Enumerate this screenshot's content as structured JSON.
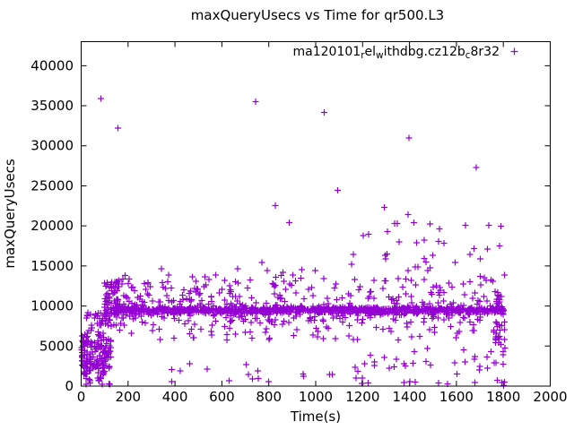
{
  "chart_data": {
    "type": "scatter",
    "title": "maxQueryUsecs vs Time for qr500.L3",
    "xlabel": "Time(s)",
    "ylabel": "maxQueryUsecs",
    "xlim": [
      0,
      2000
    ],
    "ylim": [
      0,
      43000
    ],
    "xticks": [
      0,
      200,
      400,
      600,
      800,
      1000,
      1200,
      1400,
      1600,
      1800,
      2000
    ],
    "yticks": [
      0,
      5000,
      10000,
      15000,
      20000,
      25000,
      30000,
      35000,
      40000
    ],
    "grid": false,
    "legend": {
      "position": "top-right-inside",
      "label_plain": "ma120101_rel_withdbg.cz12b_c8r32",
      "segments": [
        {
          "t": "ma120101",
          "sub": false
        },
        {
          "t": "r",
          "sub": true
        },
        {
          "t": "el",
          "sub": false
        },
        {
          "t": "w",
          "sub": true
        },
        {
          "t": "ithdbg.cz12b",
          "sub": false
        },
        {
          "t": "c",
          "sub": true
        },
        {
          "t": "8r32",
          "sub": false
        }
      ]
    },
    "marker": {
      "shape": "plus",
      "color": "#9400D3",
      "size": 7
    },
    "points": {
      "seed": 7,
      "note": "Dense ~1800-point scatter estimated from plot: clusters give density regions (values in data units), outliers are individually read points.",
      "outliers": [
        [
          84,
          35900
        ],
        [
          156,
          32230
        ],
        [
          743,
          35500
        ],
        [
          1036,
          34150
        ],
        [
          1398,
          31000
        ],
        [
          1684,
          27270
        ],
        [
          1093,
          24450
        ],
        [
          827,
          22530
        ],
        [
          1293,
          22300
        ],
        [
          888,
          20400
        ],
        [
          1226,
          18930
        ],
        [
          1348,
          20280
        ],
        [
          1394,
          21400
        ],
        [
          1355,
          18030
        ],
        [
          1638,
          20060
        ],
        [
          1299,
          15890
        ],
        [
          1546,
          17810
        ],
        [
          1733,
          17130
        ],
        [
          1657,
          16460
        ],
        [
          1702,
          15890
        ],
        [
          1435,
          14870
        ],
        [
          1488,
          14760
        ],
        [
          343,
          14640
        ],
        [
          667,
          14640
        ],
        [
          771,
          15420
        ],
        [
          794,
          14400
        ],
        [
          903,
          13850
        ],
        [
          941,
          14520
        ],
        [
          998,
          14400
        ],
        [
          545,
          13300
        ],
        [
          830,
          13600
        ],
        [
          860,
          14200
        ],
        [
          423,
          1900
        ],
        [
          537,
          2100
        ],
        [
          731,
          900
        ],
        [
          800,
          560
        ],
        [
          949,
          1230
        ],
        [
          1059,
          1450
        ],
        [
          1173,
          1000
        ],
        [
          1250,
          2550
        ],
        [
          1524,
          400
        ],
        [
          1562,
          260
        ],
        [
          1676,
          3370
        ],
        [
          1699,
          2480
        ],
        [
          1733,
          2250
        ],
        [
          1775,
          700
        ],
        [
          1794,
          450
        ],
        [
          1802,
          30
        ]
      ],
      "clusters": [
        {
          "name": "startup-blob-core",
          "n": 150,
          "dist": "normal",
          "x": [
            3,
            130
          ],
          "mean": 3600,
          "sd": 1700,
          "clip": [
            250,
            7600
          ]
        },
        {
          "name": "startup-left-edge",
          "n": 35,
          "dist": "uniform",
          "x": [
            2,
            28
          ],
          "y": [
            1400,
            6800
          ]
        },
        {
          "name": "startup-top",
          "n": 30,
          "dist": "uniform",
          "x": [
            15,
            150
          ],
          "y": [
            7300,
            9200
          ]
        },
        {
          "name": "startup-column",
          "n": 58,
          "dist": "uniform",
          "x": [
            95,
            165
          ],
          "y": [
            8800,
            13200
          ]
        },
        {
          "name": "main-band",
          "n": 880,
          "dist": "normal",
          "x": [
            135,
            1808
          ],
          "mean": 9480,
          "sd": 215
        },
        {
          "name": "band-halo",
          "n": 230,
          "dist": "normal",
          "x": [
            135,
            1808
          ],
          "mean": 9480,
          "sd": 850
        },
        {
          "name": "above-band-scatter",
          "n": 120,
          "dist": "uniform",
          "x": [
            145,
            1808
          ],
          "y": [
            10600,
            13900
          ]
        },
        {
          "name": "early-above-band",
          "n": 28,
          "dist": "uniform",
          "x": [
            140,
            700
          ],
          "y": [
            10300,
            12700
          ]
        },
        {
          "name": "below-band-scatter",
          "n": 95,
          "dist": "uniform",
          "x": [
            145,
            1808
          ],
          "y": [
            5700,
            8600
          ]
        },
        {
          "name": "right-high-scatter",
          "n": 24,
          "dist": "uniform",
          "x": [
            1150,
            1790
          ],
          "y": [
            14400,
            21500
          ]
        },
        {
          "name": "low-left",
          "n": 10,
          "dist": "uniform",
          "x": [
            380,
            1150
          ],
          "y": [
            400,
            3000
          ]
        },
        {
          "name": "low-right",
          "n": 26,
          "dist": "uniform",
          "x": [
            1150,
            1806
          ],
          "y": [
            250,
            3200
          ]
        },
        {
          "name": "low-mid",
          "n": 10,
          "dist": "uniform",
          "x": [
            1000,
            1800
          ],
          "y": [
            3200,
            5400
          ]
        },
        {
          "name": "end-of-run-tail",
          "n": 34,
          "dist": "uniform",
          "x": [
            1758,
            1808
          ],
          "y": [
            4000,
            12600
          ]
        }
      ]
    }
  }
}
